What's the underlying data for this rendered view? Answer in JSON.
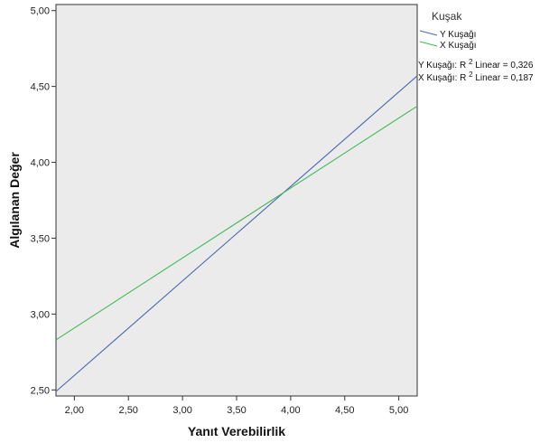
{
  "chart_data": {
    "type": "line",
    "xlabel": "Yanıt Verebilirlik",
    "ylabel": "Algılanan Değer",
    "xlim": [
      1.83,
      5.17
    ],
    "ylim": [
      2.46,
      5.04
    ],
    "xticks": [
      "2,00",
      "2,50",
      "3,00",
      "3,50",
      "4,00",
      "4,50",
      "5,00"
    ],
    "xtick_values": [
      2.0,
      2.5,
      3.0,
      3.5,
      4.0,
      4.5,
      5.0
    ],
    "yticks": [
      "2,50",
      "3,00",
      "3,50",
      "4,00",
      "4,50",
      "5,00"
    ],
    "ytick_values": [
      2.5,
      3.0,
      3.5,
      4.0,
      4.5,
      5.0
    ],
    "plot_background": "#ebebeb",
    "grid": false,
    "legend": {
      "title": "Kuşak",
      "placement": "top-right outside",
      "entries": [
        {
          "label": "Y Kuşağı",
          "color": "#4a67b0"
        },
        {
          "label": "X Kuşağı",
          "color": "#3fb85a"
        }
      ],
      "fit_notes": [
        {
          "prefix": "Y Kuşağı: R",
          "sup": "2",
          "suffix": " Linear = 0,326"
        },
        {
          "prefix": "X Kuşağı: R",
          "sup": "2",
          "suffix": " Linear = 0,187"
        }
      ]
    },
    "series": [
      {
        "name": "Y Kuşağı",
        "color": "#4a67b0",
        "x": [
          1.83,
          5.17
        ],
        "y": [
          2.49,
          4.57
        ]
      },
      {
        "name": "X Kuşağı",
        "color": "#3fb85a",
        "x": [
          1.83,
          5.17
        ],
        "y": [
          2.83,
          4.37
        ]
      }
    ]
  }
}
